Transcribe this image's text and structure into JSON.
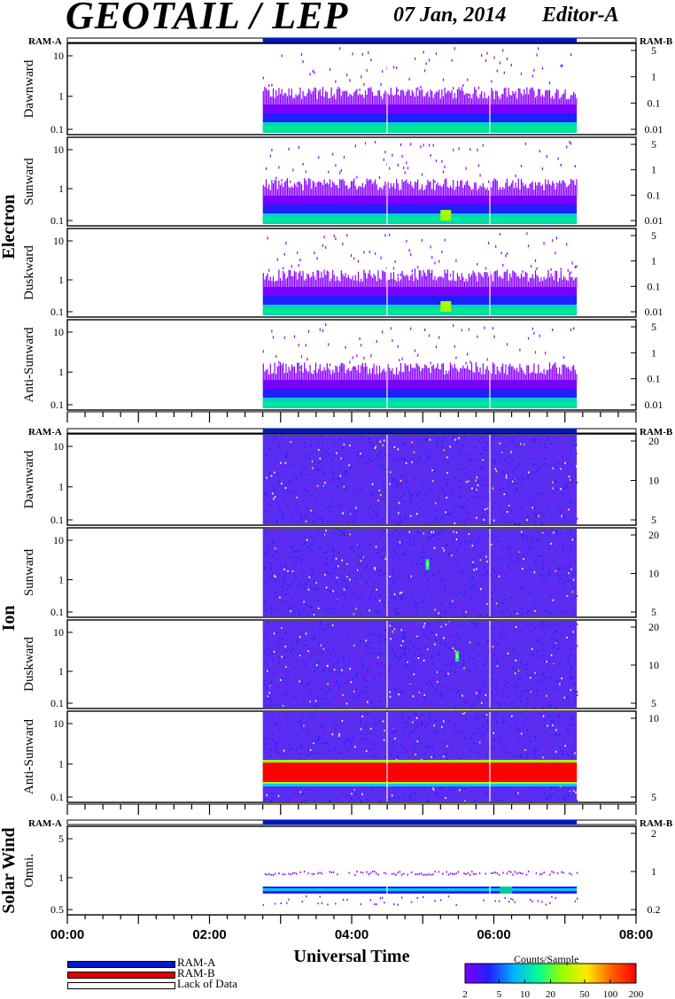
{
  "header": {
    "title": "GEOTAIL / LEP",
    "date": "07 Jan, 2014",
    "editor": "Editor-A"
  },
  "footer": {
    "legend": [
      {
        "label": "RAM-A",
        "color": "#0018c8"
      },
      {
        "label": "RAM-B",
        "color": "#e00000"
      },
      {
        "label": "Lack of Data",
        "color": "#ffffff"
      }
    ],
    "colorbar_title": "Counts/Sample"
  },
  "chart_data": {
    "type": "heatmap",
    "x_axis": {
      "label": "Universal Time",
      "range": [
        "00:00",
        "08:00"
      ],
      "tick_labels": [
        "00:00",
        "02:00",
        "04:00",
        "06:00",
        "08:00"
      ],
      "data_span": [
        "02:45",
        "07:10"
      ]
    },
    "colorbar": {
      "title": "Counts/Sample",
      "tick_labels": [
        "2",
        "5",
        "10",
        "20",
        "50",
        "100",
        "200"
      ],
      "colors": [
        "#7a00ff",
        "#2020ff",
        "#00b4ff",
        "#00ff90",
        "#9cff00",
        "#ffe800",
        "#ff6000",
        "#ff0000"
      ]
    },
    "groups": [
      {
        "name": "Electron",
        "ram_left": "RAM-A",
        "ram_right": "RAM-B",
        "panels": [
          {
            "label": "Dawnward",
            "left_ticks": [
              "10",
              "1",
              "0.1"
            ],
            "right_ticks": [
              "5",
              "1",
              "0.1",
              "0.01"
            ],
            "mode": "electron",
            "hot": false
          },
          {
            "label": "Sunward",
            "left_ticks": [
              "10",
              "1",
              "0.1"
            ],
            "right_ticks": [
              "5",
              "1",
              "0.1",
              "0.01"
            ],
            "mode": "electron",
            "hot": true
          },
          {
            "label": "Duskward",
            "left_ticks": [
              "10",
              "1",
              "0.1"
            ],
            "right_ticks": [
              "5",
              "1",
              "0.1",
              "0.01"
            ],
            "mode": "electron",
            "hot": true
          },
          {
            "label": "Anti-Sunward",
            "left_ticks": [
              "10",
              "1",
              "0.1"
            ],
            "right_ticks": [
              "5",
              "1",
              "0.1",
              "0.01"
            ],
            "mode": "electron",
            "hot": false
          }
        ]
      },
      {
        "name": "Ion",
        "ram_left": "RAM-A",
        "ram_right": "RAM-B",
        "panels": [
          {
            "label": "Dawnward",
            "left_ticks": [
              "10",
              "1",
              "0.1"
            ],
            "right_ticks": [
              "20",
              "10",
              "5"
            ],
            "mode": "ion"
          },
          {
            "label": "Sunward",
            "left_ticks": [
              "10",
              "1",
              "0.1"
            ],
            "right_ticks": [
              "20",
              "10",
              "5"
            ],
            "mode": "ion",
            "spot": "04:55"
          },
          {
            "label": "Duskward",
            "left_ticks": [
              "10",
              "1",
              "0.1"
            ],
            "right_ticks": [
              "20",
              "10",
              "5"
            ],
            "mode": "ion",
            "spot": "05:20"
          },
          {
            "label": "Anti-Sunward",
            "left_ticks": [
              "10",
              "1",
              "0.1"
            ],
            "right_ticks": [
              "10",
              "5"
            ],
            "mode": "ion-red"
          }
        ]
      },
      {
        "name": "Solar Wind",
        "ram_left": "RAM-A",
        "ram_right": "RAM-B",
        "panels": [
          {
            "label": "Omni.",
            "left_ticks": [
              "5",
              "1",
              "0.5"
            ],
            "right_ticks": [
              "2",
              "1",
              "0.2"
            ],
            "mode": "solar"
          }
        ]
      }
    ]
  }
}
